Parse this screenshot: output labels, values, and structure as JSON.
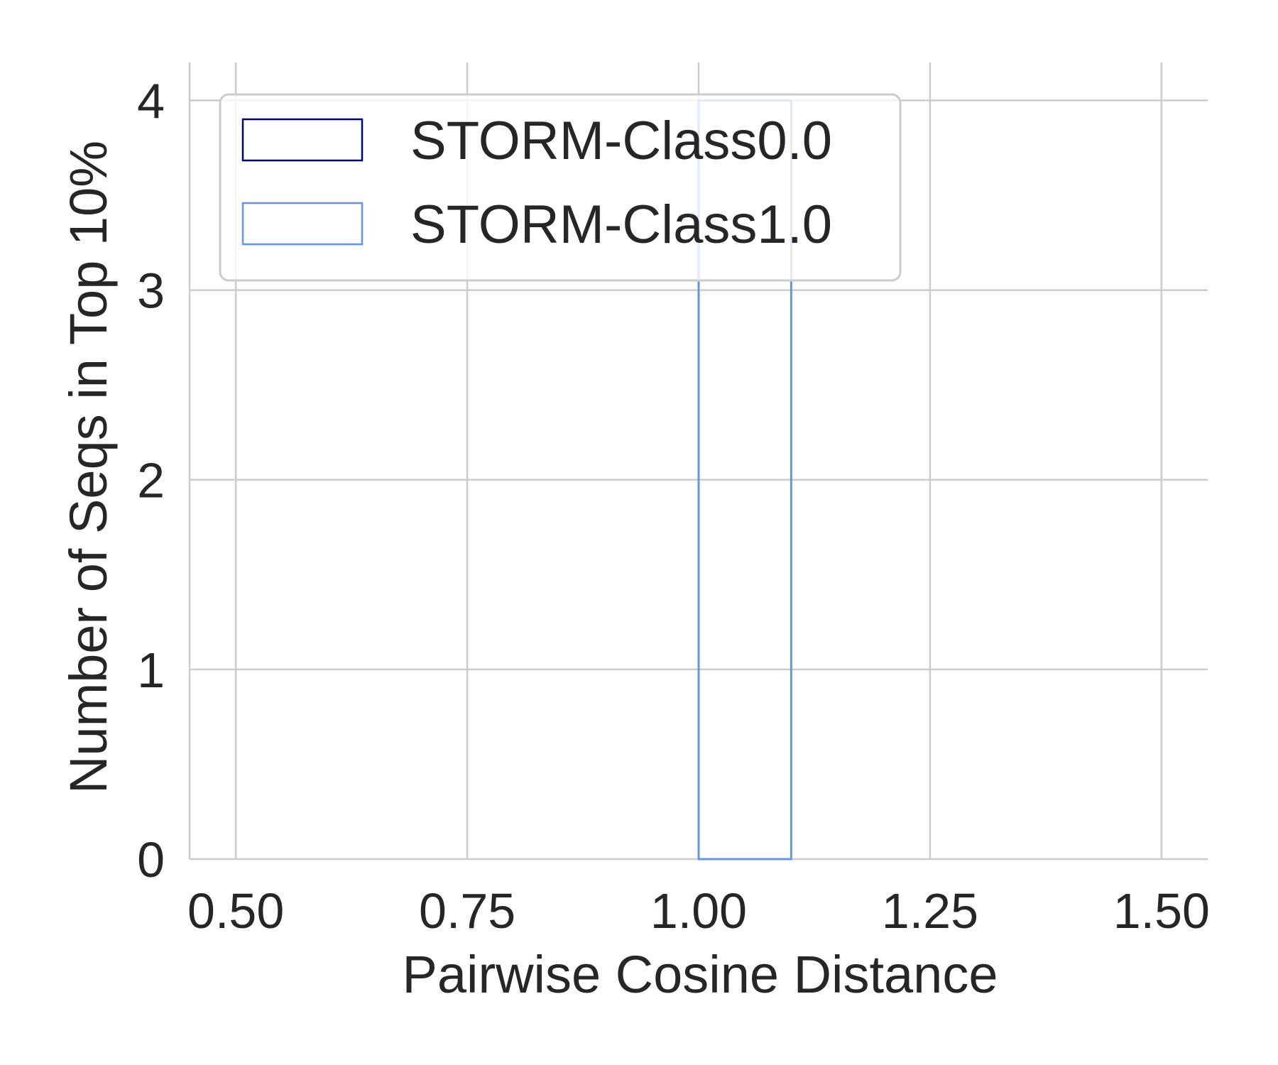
{
  "chart_data": {
    "type": "bar",
    "subtype": "histogram-step",
    "xlabel": "Pairwise Cosine Distance",
    "ylabel": "Number of Seqs in Top 10%",
    "xlim": [
      0.45,
      1.55
    ],
    "ylim": [
      0,
      4.2
    ],
    "xticks": [
      "0.50",
      "0.75",
      "1.00",
      "1.25",
      "1.50"
    ],
    "xtick_values": [
      0.5,
      0.75,
      1.0,
      1.25,
      1.5
    ],
    "yticks": [
      "0",
      "1",
      "2",
      "3",
      "4"
    ],
    "ytick_values": [
      0,
      1,
      2,
      3,
      4
    ],
    "grid": true,
    "legend_position": "top-left",
    "series": [
      {
        "name": "STORM-Class0.0",
        "color": "#000080",
        "bins": []
      },
      {
        "name": "STORM-Class1.0",
        "color": "#6495ed",
        "bins": [
          {
            "x0": 0.5,
            "x1": 1.0,
            "count": 0
          },
          {
            "x0": 1.0,
            "x1": 1.1,
            "count": 4
          },
          {
            "x0": 1.1,
            "x1": 1.5,
            "count": 0
          }
        ]
      }
    ]
  }
}
